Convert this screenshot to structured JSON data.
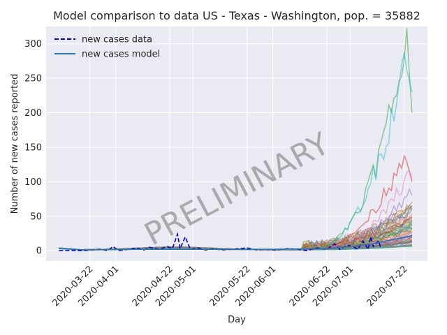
{
  "chart_data": {
    "type": "line",
    "title": "Model comparison to data US - Texas - Washington, pop. = 35882",
    "xlabel": "Day",
    "ylabel": "Number of new cases reported",
    "watermark": "PRELIMINARY",
    "x_axis": "date",
    "xlim": [
      "2020-03-05",
      "2020-07-31"
    ],
    "ylim": [
      -15,
      325
    ],
    "yticks": [
      0,
      50,
      100,
      150,
      200,
      250,
      300
    ],
    "xticks": [
      "2020-03-22",
      "2020-04-01",
      "2020-04-22",
      "2020-05-01",
      "2020-05-22",
      "2020-06-01",
      "2020-06-22",
      "2020-07-01",
      "2020-07-22"
    ],
    "grid": true,
    "legend": {
      "placement": "top-left",
      "entries": [
        {
          "label": "new cases data",
          "color": "#0000cc",
          "style": "dashed"
        },
        {
          "label": "new cases model",
          "color": "#1f77b4",
          "style": "solid"
        }
      ]
    },
    "series": [
      {
        "name": "new cases data",
        "color": "#0000cc",
        "style": "dashed",
        "points": [
          [
            "2020-03-10",
            0
          ],
          [
            "2020-03-20",
            0
          ],
          [
            "2020-03-26",
            2
          ],
          [
            "2020-03-29",
            0
          ],
          [
            "2020-03-31",
            6
          ],
          [
            "2020-04-02",
            0
          ],
          [
            "2020-04-06",
            2
          ],
          [
            "2020-04-09",
            4
          ],
          [
            "2020-04-12",
            1
          ],
          [
            "2020-04-14",
            5
          ],
          [
            "2020-04-18",
            2
          ],
          [
            "2020-04-21",
            6
          ],
          [
            "2020-04-23",
            3
          ],
          [
            "2020-04-25",
            24
          ],
          [
            "2020-04-26",
            3
          ],
          [
            "2020-04-28",
            20
          ],
          [
            "2020-04-30",
            2
          ],
          [
            "2020-05-03",
            4
          ],
          [
            "2020-05-06",
            1
          ],
          [
            "2020-05-09",
            3
          ],
          [
            "2020-05-12",
            1
          ],
          [
            "2020-05-16",
            2
          ],
          [
            "2020-05-22",
            4
          ],
          [
            "2020-05-26",
            1
          ],
          [
            "2020-05-29",
            2
          ],
          [
            "2020-06-02",
            1
          ],
          [
            "2020-06-07",
            3
          ],
          [
            "2020-06-11",
            2
          ],
          [
            "2020-06-14",
            0
          ],
          [
            "2020-06-18",
            4
          ],
          [
            "2020-06-22",
            2
          ],
          [
            "2020-06-25",
            10
          ],
          [
            "2020-06-27",
            2
          ],
          [
            "2020-06-30",
            8
          ],
          [
            "2020-07-02",
            6
          ],
          [
            "2020-07-04",
            2
          ],
          [
            "2020-07-06",
            14
          ],
          [
            "2020-07-08",
            2
          ],
          [
            "2020-07-09",
            20
          ],
          [
            "2020-07-10",
            6
          ],
          [
            "2020-07-12",
            14
          ],
          [
            "2020-07-13",
            3
          ]
        ]
      },
      {
        "name": "new cases model",
        "color": "#1f77b4",
        "style": "solid",
        "points": [
          [
            "2020-03-10",
            3
          ],
          [
            "2020-03-20",
            1
          ],
          [
            "2020-04-10",
            2
          ],
          [
            "2020-05-01",
            2
          ],
          [
            "2020-06-01",
            2
          ],
          [
            "2020-06-22",
            3
          ],
          [
            "2020-07-01",
            6
          ],
          [
            "2020-07-10",
            10
          ],
          [
            "2020-07-15",
            14
          ],
          [
            "2020-07-20",
            18
          ],
          [
            "2020-07-23",
            20
          ],
          [
            "2020-07-25",
            22
          ]
        ]
      }
    ],
    "ensemble": {
      "description_colors": [
        "#1f77b4",
        "#ff7f0e",
        "#2ca02c",
        "#d62728",
        "#9467bd",
        "#8c564b",
        "#e377c2",
        "#7f7f7f",
        "#bcbd22",
        "#17becf"
      ],
      "notable_runs": [
        {
          "color": "#2ca02c",
          "peak_date": "2020-07-23",
          "peak_value": 310,
          "end_value": 200
        },
        {
          "color": "#17becf",
          "peak_date": "2020-07-22",
          "peak_value": 277,
          "end_value": 230
        },
        {
          "color": "#d62728",
          "peak_date": "2020-07-22",
          "peak_value": 143,
          "end_value": 100
        },
        {
          "color": "#e377c2",
          "peak_date": "2020-07-24",
          "peak_value": 110,
          "end_value": 105
        },
        {
          "color": "#9467bd",
          "peak_date": "2020-07-24",
          "peak_value": 85,
          "end_value": 80
        }
      ]
    }
  }
}
